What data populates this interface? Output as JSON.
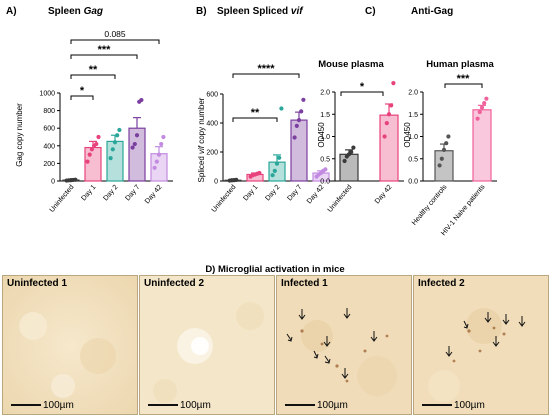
{
  "panelA": {
    "letter": "A)",
    "title_pre": "Spleen ",
    "title_em": "Gag",
    "ylabel": "Gag copy number",
    "sig": [
      "*",
      "**",
      "***",
      "0.085"
    ]
  },
  "panelB": {
    "letter": "B)",
    "title_pre": "Spleen Spliced ",
    "title_em": "vif",
    "ylabel_pre": "Spliced ",
    "ylabel_em": "vif",
    "ylabel_post": " copy number",
    "sig": [
      "**",
      "****"
    ]
  },
  "panelC": {
    "letter": "C)",
    "title": "Anti-Gag",
    "mouse_title": "Mouse plasma",
    "human_title": "Human plasma",
    "ylabel": "OD450",
    "sig_mouse": "*",
    "sig_human": "***"
  },
  "panelD": {
    "title": "D) Microglial activation in mice",
    "images": [
      {
        "label": "Uninfected 1",
        "scale": "100µm"
      },
      {
        "label": "Uninfected 2",
        "scale": "100µm"
      },
      {
        "label": "Infected 1",
        "scale": "100µm"
      },
      {
        "label": "Infected 2",
        "scale": "100µm"
      }
    ]
  },
  "colors": {
    "uninfected": "#3a3a3a",
    "day1": "#e8427c",
    "day2": "#2aa79a",
    "day7": "#7b3fa0",
    "day42": "#c28ae0",
    "healthy": "#555555",
    "hiv": "#f0609a",
    "tissue": "#f2e2c3"
  },
  "chart_data": [
    {
      "type": "bar",
      "title": "Spleen Gag",
      "xlabel": "",
      "ylabel": "Gag copy number",
      "ylim": [
        0,
        1000
      ],
      "yticks": [
        0,
        200,
        400,
        600,
        800,
        1000
      ],
      "categories": [
        "Uninfected",
        "Day 1",
        "Day 2",
        "Day 7",
        "Day 42"
      ],
      "values": [
        10,
        380,
        450,
        600,
        310
      ],
      "errors": [
        5,
        70,
        70,
        120,
        80
      ],
      "points": [
        [
          5,
          8,
          10,
          12,
          15
        ],
        [
          220,
          300,
          360,
          400,
          420,
          500
        ],
        [
          260,
          360,
          440,
          520,
          580
        ],
        [
          380,
          420,
          520,
          900,
          920
        ],
        [
          150,
          220,
          300,
          420,
          500
        ]
      ]
    },
    {
      "type": "bar",
      "title": "Spleen Spliced vif",
      "xlabel": "",
      "ylabel": "Spliced vif copy number",
      "ylim": [
        0,
        600
      ],
      "yticks": [
        0,
        200,
        400,
        600
      ],
      "categories": [
        "Uninfected",
        "Day 1",
        "Day 2",
        "Day 7",
        "Day 42"
      ],
      "values": [
        5,
        45,
        130,
        420,
        55
      ],
      "errors": [
        3,
        10,
        50,
        55,
        15
      ],
      "points": [
        [
          3,
          5,
          6,
          8
        ],
        [
          30,
          40,
          45,
          50,
          55
        ],
        [
          40,
          70,
          120,
          160,
          500
        ],
        [
          300,
          380,
          420,
          480,
          560
        ],
        [
          30,
          45,
          55,
          70,
          80
        ]
      ]
    },
    {
      "type": "bar",
      "title": "Mouse plasma",
      "xlabel": "",
      "ylabel": "OD450",
      "ylim": [
        0,
        2.0
      ],
      "yticks": [
        0.0,
        0.5,
        1.0,
        1.5,
        2.0
      ],
      "categories": [
        "Uninfected",
        "Day 42"
      ],
      "values": [
        0.6,
        1.48
      ],
      "errors": [
        0.1,
        0.25
      ],
      "points": [
        [
          0.45,
          0.55,
          0.6,
          0.65,
          0.75
        ],
        [
          1.0,
          1.3,
          1.5,
          1.7,
          2.2
        ]
      ]
    },
    {
      "type": "bar",
      "title": "Human plasma",
      "xlabel": "",
      "ylabel": "OD450",
      "ylim": [
        0,
        2.0
      ],
      "yticks": [
        0.0,
        0.5,
        1.0,
        1.5,
        2.0
      ],
      "categories": [
        "Healthy controls",
        "HIV-1 Naive patients"
      ],
      "values": [
        0.68,
        1.6
      ],
      "errors": [
        0.15,
        0.1
      ],
      "points": [
        [
          0.35,
          0.5,
          0.7,
          0.85,
          1.0
        ],
        [
          1.4,
          1.55,
          1.65,
          1.75,
          1.85
        ]
      ]
    }
  ]
}
